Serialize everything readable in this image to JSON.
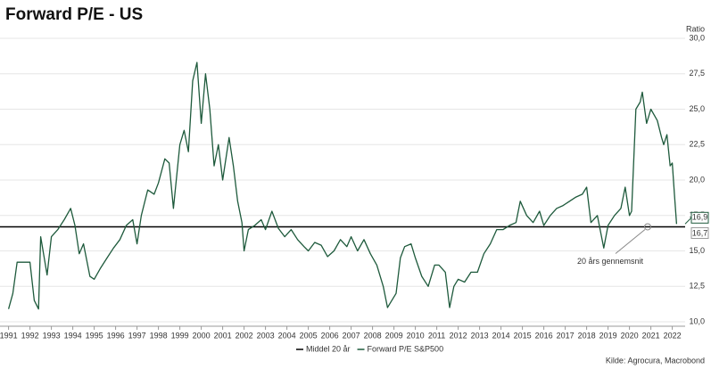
{
  "chart_data": {
    "type": "line",
    "title": "Forward P/E - US",
    "y_label": "Ratio",
    "source": "Kilde: Agrocura, Macrobond",
    "annotation": "20 års gennemsnit",
    "grid": true,
    "xlim": [
      1990.6,
      2022.6
    ],
    "xticks": [
      1991,
      1992,
      1993,
      1994,
      1995,
      1996,
      1997,
      1998,
      1999,
      2000,
      2001,
      2002,
      2003,
      2004,
      2005,
      2006,
      2007,
      2008,
      2009,
      2010,
      2011,
      2012,
      2013,
      2014,
      2015,
      2016,
      2017,
      2018,
      2019,
      2020,
      2021,
      2022
    ],
    "ylim": [
      10,
      30
    ],
    "yticks": [
      {
        "value": 10,
        "label": "10,0"
      },
      {
        "value": 12.5,
        "label": "12,5"
      },
      {
        "value": 15,
        "label": "15,0"
      },
      {
        "value": 17.5,
        "label": "17,5"
      },
      {
        "value": 20,
        "label": "20,0"
      },
      {
        "value": 22.5,
        "label": "22,5"
      },
      {
        "value": 25,
        "label": "25,0"
      },
      {
        "value": 27.5,
        "label": "27,5"
      },
      {
        "value": 30,
        "label": "30,0"
      }
    ],
    "reference_lines": [
      {
        "name": "Middel 20 år",
        "value": 16.7,
        "value_label": "16,7",
        "color": "#000000"
      }
    ],
    "x": [
      1991.0,
      1991.2,
      1991.4,
      1991.8,
      1992.0,
      1992.2,
      1992.4,
      1992.5,
      1992.8,
      1993.0,
      1993.3,
      1993.6,
      1993.9,
      1994.1,
      1994.3,
      1994.5,
      1994.8,
      1995.0,
      1995.3,
      1995.6,
      1995.9,
      1996.2,
      1996.5,
      1996.8,
      1997.0,
      1997.2,
      1997.5,
      1997.8,
      1998.0,
      1998.3,
      1998.5,
      1998.7,
      1999.0,
      1999.2,
      1999.4,
      1999.6,
      1999.8,
      2000.0,
      2000.2,
      2000.4,
      2000.6,
      2000.8,
      2001.0,
      2001.3,
      2001.5,
      2001.7,
      2001.9,
      2002.0,
      2002.2,
      2002.5,
      2002.8,
      2003.0,
      2003.3,
      2003.6,
      2003.9,
      2004.2,
      2004.5,
      2004.8,
      2005.0,
      2005.3,
      2005.6,
      2005.9,
      2006.2,
      2006.5,
      2006.8,
      2007.0,
      2007.3,
      2007.6,
      2007.9,
      2008.2,
      2008.5,
      2008.7,
      2008.9,
      2009.1,
      2009.3,
      2009.5,
      2009.8,
      2010.0,
      2010.3,
      2010.6,
      2010.9,
      2011.1,
      2011.4,
      2011.6,
      2011.8,
      2012.0,
      2012.3,
      2012.6,
      2012.9,
      2013.2,
      2013.5,
      2013.8,
      2014.1,
      2014.4,
      2014.7,
      2014.9,
      2015.2,
      2015.5,
      2015.8,
      2016.0,
      2016.3,
      2016.6,
      2016.9,
      2017.2,
      2017.5,
      2017.8,
      2018.0,
      2018.2,
      2018.5,
      2018.8,
      2019.0,
      2019.3,
      2019.6,
      2019.8,
      2020.0,
      2020.1,
      2020.3,
      2020.5,
      2020.6,
      2020.8,
      2021.0,
      2021.3,
      2021.5,
      2021.6,
      2021.75,
      2021.9,
      2022.0,
      2022.1,
      2022.2
    ],
    "series": [
      {
        "name": "Forward P/E S&P500",
        "color": "#1e5a3c",
        "values": [
          10.9,
          12.0,
          14.2,
          14.2,
          14.2,
          11.5,
          10.9,
          16.0,
          13.3,
          16.0,
          16.5,
          17.2,
          18.0,
          16.8,
          14.8,
          15.5,
          13.2,
          13.0,
          13.8,
          14.5,
          15.2,
          15.8,
          16.8,
          17.2,
          15.5,
          17.5,
          19.3,
          19.0,
          19.8,
          21.5,
          21.2,
          18.0,
          22.5,
          23.5,
          22.0,
          27.0,
          28.3,
          24.0,
          27.5,
          25.0,
          21.0,
          22.5,
          20.0,
          23.0,
          21.0,
          18.5,
          17.0,
          15.0,
          16.5,
          16.8,
          17.2,
          16.5,
          17.8,
          16.6,
          16.0,
          16.5,
          15.8,
          15.3,
          15.0,
          15.6,
          15.4,
          14.6,
          15.0,
          15.8,
          15.3,
          16.0,
          15.0,
          15.8,
          14.8,
          14.0,
          12.5,
          11.0,
          11.5,
          12.0,
          14.5,
          15.3,
          15.5,
          14.5,
          13.2,
          12.5,
          14.0,
          14.0,
          13.5,
          11.0,
          12.5,
          13.0,
          12.8,
          13.5,
          13.5,
          14.8,
          15.5,
          16.5,
          16.5,
          16.8,
          17.0,
          18.5,
          17.5,
          17.0,
          17.8,
          16.8,
          17.5,
          18.0,
          18.2,
          18.5,
          18.8,
          19.0,
          19.5,
          17.0,
          17.5,
          15.2,
          16.8,
          17.5,
          18.0,
          19.5,
          17.5,
          17.8,
          25.0,
          25.5,
          26.2,
          24.0,
          25.0,
          24.2,
          23.0,
          22.5,
          23.2,
          21.0,
          21.2,
          19.0,
          16.9
        ],
        "value_labels": [
          null,
          null,
          null,
          null,
          null,
          null,
          null,
          null,
          null,
          null,
          null,
          null,
          null,
          null,
          null,
          null,
          null,
          null,
          null,
          null,
          null,
          null,
          null,
          null,
          null,
          null,
          null,
          null,
          null,
          null,
          null,
          null,
          null,
          null,
          null,
          null,
          null,
          null,
          null,
          null,
          null,
          null,
          null,
          null,
          null,
          null,
          null,
          null,
          null,
          null,
          null,
          null,
          null,
          null,
          null,
          null,
          null,
          null,
          null,
          null,
          null,
          null,
          null,
          null,
          null,
          null,
          null,
          null,
          null,
          null,
          null,
          null,
          null,
          null,
          null,
          null,
          null,
          null,
          null,
          null,
          null,
          null,
          null,
          null,
          null,
          null,
          null,
          null,
          null,
          null,
          null,
          null,
          null,
          null,
          null,
          null,
          null,
          null,
          null,
          null,
          null,
          null,
          null,
          null,
          null,
          null,
          null,
          null,
          null,
          null,
          null,
          null,
          null,
          null,
          null,
          null,
          null,
          null,
          null,
          null,
          null,
          null,
          null,
          null,
          null,
          null,
          null,
          null,
          "16,9"
        ]
      }
    ]
  }
}
